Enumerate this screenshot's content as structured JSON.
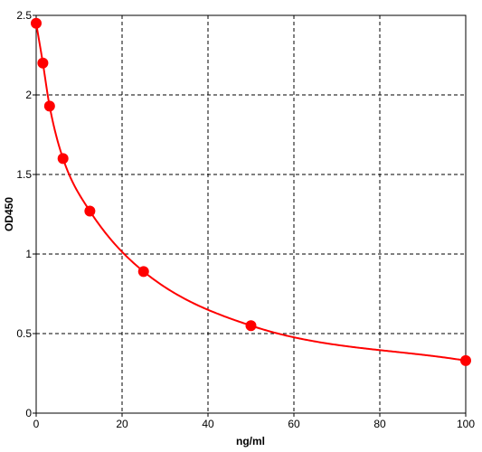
{
  "chart_data": {
    "type": "scatter",
    "title": "",
    "xlabel": "ng/ml",
    "ylabel": "OD450",
    "xlim": [
      0,
      100
    ],
    "ylim": [
      0,
      2.5
    ],
    "x_ticks": [
      0,
      20,
      40,
      60,
      80,
      100
    ],
    "y_ticks": [
      0,
      0.5,
      1,
      1.5,
      2,
      2.5
    ],
    "x_tick_labels": [
      "0",
      "20",
      "40",
      "60",
      "80",
      "100"
    ],
    "y_tick_labels": [
      "0",
      "0.5",
      "1",
      "1.5",
      "2",
      "2.5"
    ],
    "grid": true,
    "legend": "none",
    "series": [
      {
        "points": [
          {
            "x": 0,
            "y": 2.45
          },
          {
            "x": 1.56,
            "y": 2.2
          },
          {
            "x": 3.12,
            "y": 1.93
          },
          {
            "x": 6.25,
            "y": 1.6
          },
          {
            "x": 12.5,
            "y": 1.27
          },
          {
            "x": 25,
            "y": 0.89
          },
          {
            "x": 50,
            "y": 0.55
          },
          {
            "x": 100,
            "y": 0.33
          }
        ],
        "fit_curve": true,
        "color": "#ff0000"
      }
    ]
  }
}
